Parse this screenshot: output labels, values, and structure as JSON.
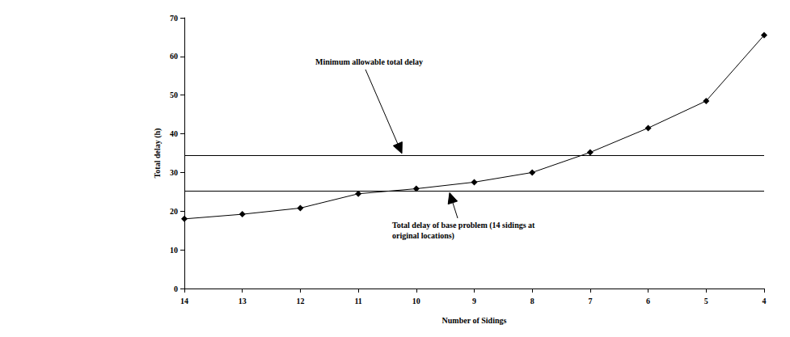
{
  "chart_data": {
    "type": "line",
    "x_label": "Number of Sidings",
    "y_label": "Total delay (h)",
    "categories": [
      "14",
      "13",
      "12",
      "11",
      "10",
      "9",
      "8",
      "7",
      "6",
      "5",
      "4"
    ],
    "values": [
      18,
      19.2,
      20.8,
      24.5,
      25.8,
      27.5,
      30,
      35.2,
      41.5,
      48.5,
      65.5
    ],
    "color": "#000000",
    "marker": "diamond",
    "line_style": "solid",
    "ylim": [
      0,
      70
    ],
    "yticks": [
      0,
      10,
      20,
      30,
      40,
      50,
      60,
      70
    ],
    "grid": false,
    "annotations": [
      {
        "text": "Minimum allowable total delay",
        "y": 34.5
      },
      {
        "text": "Total delay of base problem (14 sidings at original locations)",
        "y": 25.2
      }
    ]
  }
}
